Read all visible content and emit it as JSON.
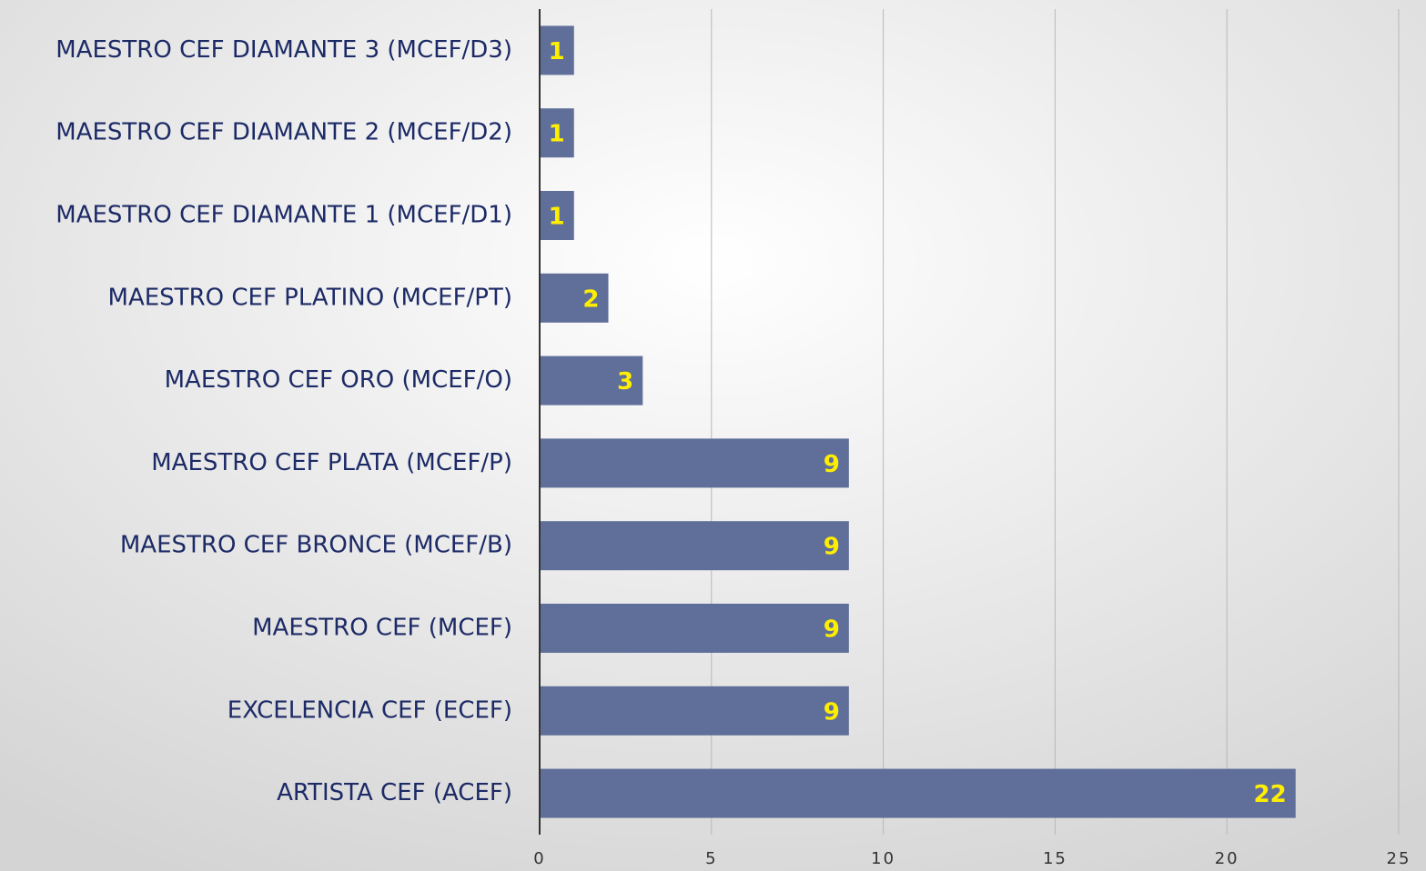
{
  "chart_data": {
    "type": "barh",
    "categories": [
      "MAESTRO CEF DIAMANTE 3 (MCEF/D3)",
      "MAESTRO CEF DIAMANTE 2 (MCEF/D2)",
      "MAESTRO CEF DIAMANTE 1 (MCEF/D1)",
      "MAESTRO CEF PLATINO (MCEF/PT)",
      "MAESTRO CEF ORO (MCEF/O)",
      "MAESTRO CEF PLATA (MCEF/P)",
      "MAESTRO CEF BRONCE (MCEF/B)",
      "MAESTRO CEF (MCEF)",
      "EXCELENCIA CEF (ECEF)",
      "ARTISTA CEF (ACEF)"
    ],
    "values": [
      1,
      1,
      1,
      2,
      3,
      9,
      9,
      9,
      9,
      22
    ],
    "color": "#5f6f99",
    "xlim": [
      0,
      25
    ],
    "xticks": [
      0,
      5,
      10,
      15,
      20,
      25
    ],
    "grid": true
  }
}
